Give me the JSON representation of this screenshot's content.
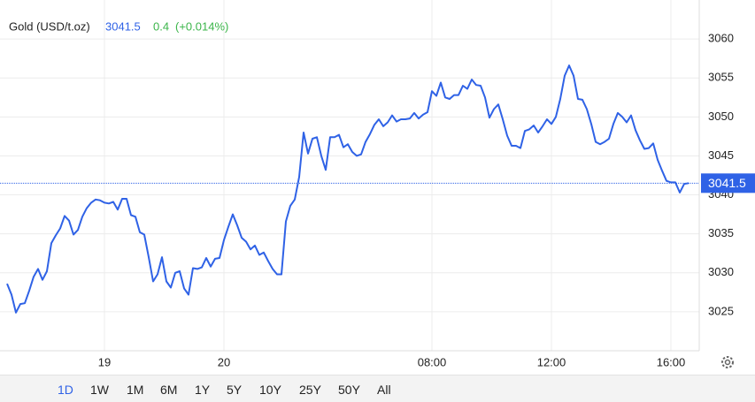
{
  "quote": {
    "name": "Gold (USD/t.oz)",
    "change": "0.4",
    "change_pct": "(+0.014%)"
  },
  "ranges": [
    "1D",
    "1W",
    "1M",
    "6M",
    "1Y",
    "5Y",
    "10Y",
    "25Y",
    "50Y",
    "All"
  ],
  "active_range": 0,
  "chart_data": {
    "type": "line",
    "color": "#2f62e6",
    "grid": true,
    "axis_side": "right",
    "last_value": 3041.5,
    "ylim": [
      3020,
      3065
    ],
    "yticks": [
      3025,
      3030,
      3035,
      3040,
      3045,
      3050,
      3055,
      3060
    ],
    "categories": [
      null,
      null,
      null,
      null,
      null,
      null,
      null,
      null,
      null,
      null,
      null,
      null,
      null,
      null,
      null,
      null,
      null,
      null,
      null,
      null,
      null,
      null,
      "19",
      null,
      null,
      null,
      null,
      null,
      null,
      null,
      null,
      null,
      null,
      null,
      null,
      null,
      null,
      null,
      null,
      null,
      null,
      null,
      null,
      null,
      null,
      null,
      null,
      null,
      null,
      "20",
      null,
      null,
      null,
      null,
      null,
      null,
      null,
      null,
      null,
      null,
      null,
      null,
      null,
      null,
      null,
      null,
      null,
      null,
      null,
      null,
      null,
      null,
      null,
      null,
      null,
      null,
      null,
      null,
      null,
      null,
      null,
      null,
      null,
      null,
      null,
      null,
      null,
      null,
      null,
      null,
      null,
      null,
      null,
      null,
      null,
      null,
      "08:00",
      null,
      null,
      null,
      null,
      null,
      null,
      null,
      null,
      null,
      null,
      null,
      null,
      null,
      null,
      null,
      null,
      null,
      null,
      null,
      null,
      null,
      null,
      null,
      null,
      null,
      null,
      "12:00",
      null,
      null,
      null,
      null,
      null,
      null,
      null,
      null,
      null,
      null,
      null,
      null,
      null,
      null,
      null,
      null,
      null,
      null,
      null,
      null,
      null,
      null,
      null,
      null,
      null,
      null,
      "16:00",
      null,
      null,
      null,
      null
    ],
    "values": [
      3028.6,
      3027.2,
      3024.9,
      3026.0,
      3026.1,
      3027.7,
      3029.5,
      3030.5,
      3029.1,
      3030.2,
      3033.8,
      3034.8,
      3035.7,
      3037.3,
      3036.7,
      3034.9,
      3035.5,
      3037.2,
      3038.3,
      3039.0,
      3039.4,
      3039.3,
      3039.0,
      3038.9,
      3039.1,
      3038.1,
      3039.5,
      3039.5,
      3037.4,
      3037.2,
      3035.2,
      3034.9,
      3032.0,
      3028.9,
      3029.8,
      3032.0,
      3028.9,
      3028.1,
      3030.0,
      3030.2,
      3028.0,
      3027.2,
      3030.6,
      3030.5,
      3030.7,
      3031.9,
      3030.8,
      3031.8,
      3031.9,
      3034.2,
      3035.9,
      3037.5,
      3036.1,
      3034.5,
      3034.0,
      3033.0,
      3033.5,
      3032.3,
      3032.6,
      3031.5,
      3030.5,
      3029.8,
      3029.8,
      3036.6,
      3038.6,
      3039.4,
      3042.3,
      3048.0,
      3045.3,
      3047.2,
      3047.4,
      3045.0,
      3043.2,
      3047.4,
      3047.4,
      3047.7,
      3046.1,
      3046.5,
      3045.5,
      3045.0,
      3045.2,
      3046.8,
      3047.8,
      3049.0,
      3049.7,
      3048.8,
      3049.3,
      3050.2,
      3049.4,
      3049.7,
      3049.7,
      3049.8,
      3050.5,
      3049.8,
      3050.3,
      3050.6,
      3053.3,
      3052.7,
      3054.4,
      3052.5,
      3052.3,
      3052.8,
      3052.8,
      3054.0,
      3053.6,
      3054.8,
      3054.1,
      3054.0,
      3052.5,
      3049.9,
      3051.0,
      3051.6,
      3049.7,
      3047.6,
      3046.3,
      3046.3,
      3046.0,
      3048.2,
      3048.4,
      3048.9,
      3048.0,
      3048.8,
      3049.7,
      3049.1,
      3050.0,
      3052.3,
      3055.3,
      3056.6,
      3055.3,
      3052.3,
      3052.2,
      3051.0,
      3049.1,
      3046.8,
      3046.5,
      3046.8,
      3047.2,
      3049.1,
      3050.5,
      3050.0,
      3049.3,
      3050.2,
      3048.3,
      3047.0,
      3045.9,
      3046.0,
      3046.6,
      3044.5,
      3043.1,
      3041.8,
      3041.6,
      3041.6,
      3040.3,
      3041.4,
      3041.5
    ]
  }
}
